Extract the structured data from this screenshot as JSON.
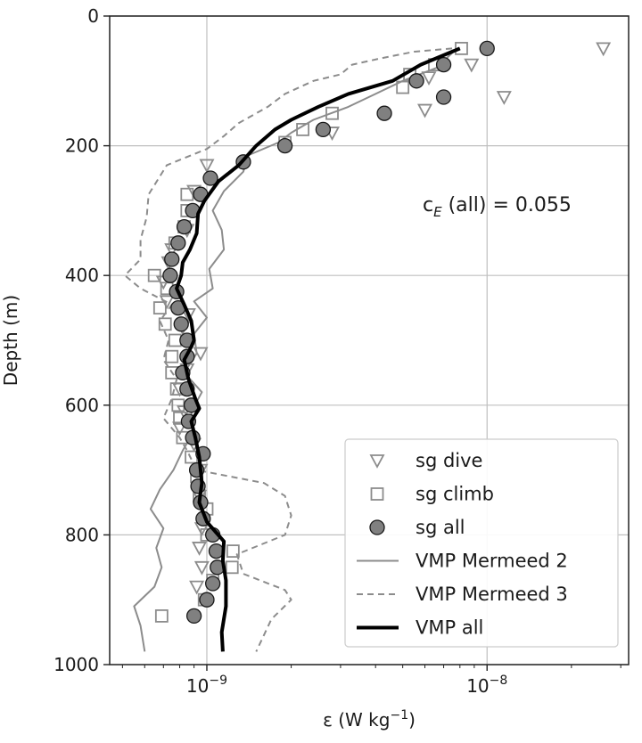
{
  "chart_data": {
    "type": "scatter",
    "xscale": "log",
    "xlim": [
      4.5e-10,
      3.2e-08
    ],
    "ylim": [
      1000,
      0
    ],
    "ylabel": "Depth (m)",
    "xlabel": {
      "pre": "ε (W kg",
      "sup": "−1",
      "post": ")"
    },
    "grid": true,
    "x_ticks": [
      {
        "value": 1e-09,
        "base": "10",
        "exp": "−9"
      },
      {
        "value": 1e-08,
        "base": "10",
        "exp": "−8"
      }
    ],
    "y_ticks": [
      0,
      200,
      400,
      600,
      800,
      1000
    ],
    "annotation": {
      "c": "c",
      "sub": "E",
      "rest": " (all) = 0.055"
    },
    "legend": {
      "position": "lower-right",
      "entries": [
        "sg dive",
        "sg climb",
        "sg all",
        "VMP Mermeed 2",
        "VMP Mermeed 3",
        "VMP all"
      ]
    },
    "series": [
      {
        "name": "sg dive",
        "marker": "triangle-down",
        "color": "#888888",
        "points": [
          [
            2.6e-08,
            50
          ],
          [
            8.8e-09,
            75
          ],
          [
            1.15e-08,
            125
          ],
          [
            6.2e-09,
            95
          ],
          [
            6e-09,
            145
          ],
          [
            2.8e-09,
            180
          ],
          [
            1e-09,
            230
          ],
          [
            9e-10,
            270
          ],
          [
            8.5e-10,
            330
          ],
          [
            7.5e-10,
            360
          ],
          [
            7.3e-10,
            380
          ],
          [
            7e-10,
            410
          ],
          [
            7.2e-10,
            440
          ],
          [
            8.6e-10,
            460
          ],
          [
            8.2e-10,
            480
          ],
          [
            9.5e-10,
            520
          ],
          [
            8.5e-10,
            545
          ],
          [
            8e-10,
            575
          ],
          [
            8.3e-10,
            610
          ],
          [
            8e-10,
            635
          ],
          [
            9e-10,
            660
          ],
          [
            9.5e-10,
            700
          ],
          [
            9.4e-10,
            740
          ],
          [
            9.6e-10,
            790
          ],
          [
            9.4e-10,
            820
          ],
          [
            9.6e-10,
            850
          ],
          [
            9.2e-10,
            880
          ]
        ]
      },
      {
        "name": "sg climb",
        "marker": "square",
        "color": "#888888",
        "points": [
          [
            8.1e-09,
            50
          ],
          [
            6.5e-09,
            75
          ],
          [
            5.3e-09,
            90
          ],
          [
            5e-09,
            110
          ],
          [
            2.8e-09,
            150
          ],
          [
            2.2e-09,
            175
          ],
          [
            1.9e-09,
            195
          ],
          [
            8.5e-10,
            275
          ],
          [
            8.5e-10,
            300
          ],
          [
            8.3e-10,
            325
          ],
          [
            7.7e-10,
            350
          ],
          [
            6.5e-10,
            400
          ],
          [
            7.2e-10,
            420
          ],
          [
            6.8e-10,
            450
          ],
          [
            7.1e-10,
            475
          ],
          [
            7.7e-10,
            500
          ],
          [
            7.5e-10,
            525
          ],
          [
            7.5e-10,
            550
          ],
          [
            7.8e-10,
            575
          ],
          [
            7.9e-10,
            600
          ],
          [
            8e-10,
            620
          ],
          [
            8.2e-10,
            650
          ],
          [
            8.8e-10,
            680
          ],
          [
            9.2e-10,
            710
          ],
          [
            9.4e-10,
            740
          ],
          [
            1e-09,
            760
          ],
          [
            1e-09,
            800
          ],
          [
            1.24e-09,
            825
          ],
          [
            1.23e-09,
            850
          ],
          [
            1.05e-09,
            870
          ],
          [
            9.8e-10,
            900
          ],
          [
            6.9e-10,
            925
          ]
        ]
      },
      {
        "name": "sg all",
        "marker": "circle",
        "color": "#888888",
        "points": [
          [
            1e-08,
            50
          ],
          [
            7e-09,
            75
          ],
          [
            5.6e-09,
            100
          ],
          [
            7e-09,
            125
          ],
          [
            4.3e-09,
            150
          ],
          [
            2.6e-09,
            175
          ],
          [
            1.9e-09,
            200
          ],
          [
            1.35e-09,
            225
          ],
          [
            1.03e-09,
            250
          ],
          [
            9.5e-10,
            275
          ],
          [
            8.9e-10,
            300
          ],
          [
            8.3e-10,
            325
          ],
          [
            7.9e-10,
            350
          ],
          [
            7.5e-10,
            375
          ],
          [
            7.4e-10,
            400
          ],
          [
            7.8e-10,
            425
          ],
          [
            7.9e-10,
            450
          ],
          [
            8.1e-10,
            475
          ],
          [
            8.5e-10,
            500
          ],
          [
            8.5e-10,
            525
          ],
          [
            8.2e-10,
            550
          ],
          [
            8.5e-10,
            575
          ],
          [
            8.8e-10,
            600
          ],
          [
            8.6e-10,
            625
          ],
          [
            8.9e-10,
            650
          ],
          [
            9.7e-10,
            675
          ],
          [
            9.2e-10,
            700
          ],
          [
            9.3e-10,
            725
          ],
          [
            9.5e-10,
            750
          ],
          [
            9.7e-10,
            775
          ],
          [
            1.05e-09,
            800
          ],
          [
            1.08e-09,
            825
          ],
          [
            1.09e-09,
            850
          ],
          [
            1.05e-09,
            875
          ],
          [
            1e-09,
            900
          ],
          [
            9e-10,
            925
          ]
        ]
      },
      {
        "name": "VMP Mermeed 2",
        "style": "solid-thin",
        "color": "#888888",
        "points": [
          [
            7.8e-09,
            50
          ],
          [
            6.6e-09,
            80
          ],
          [
            5e-09,
            100
          ],
          [
            4e-09,
            120
          ],
          [
            3.2e-09,
            140
          ],
          [
            2.4e-09,
            160
          ],
          [
            2e-09,
            180
          ],
          [
            1.8e-09,
            195
          ],
          [
            1.4e-09,
            215
          ],
          [
            1.35e-09,
            240
          ],
          [
            1.15e-09,
            270
          ],
          [
            1.05e-09,
            300
          ],
          [
            1.13e-09,
            330
          ],
          [
            1.15e-09,
            360
          ],
          [
            1.02e-09,
            390
          ],
          [
            1.05e-09,
            420
          ],
          [
            9e-10,
            440
          ],
          [
            1e-09,
            465
          ],
          [
            9e-10,
            490
          ],
          [
            9.2e-10,
            520
          ],
          [
            8.3e-10,
            550
          ],
          [
            9.6e-10,
            580
          ],
          [
            8.8e-10,
            610
          ],
          [
            9e-10,
            640
          ],
          [
            8.2e-10,
            670
          ],
          [
            7.6e-10,
            700
          ],
          [
            6.8e-10,
            730
          ],
          [
            6.3e-10,
            760
          ],
          [
            7e-10,
            790
          ],
          [
            6.6e-10,
            820
          ],
          [
            6.9e-10,
            850
          ],
          [
            6.5e-10,
            880
          ],
          [
            5.5e-10,
            910
          ],
          [
            5.8e-10,
            940
          ],
          [
            6e-10,
            980
          ]
        ]
      },
      {
        "name": "VMP Mermeed 3",
        "style": "dashed",
        "color": "#888888",
        "points": [
          [
            7.5e-09,
            50
          ],
          [
            5.5e-09,
            55
          ],
          [
            4.2e-09,
            65
          ],
          [
            3.3e-09,
            75
          ],
          [
            3e-09,
            90
          ],
          [
            2.4e-09,
            100
          ],
          [
            1.9e-09,
            120
          ],
          [
            1.65e-09,
            140
          ],
          [
            1.3e-09,
            165
          ],
          [
            1.15e-09,
            185
          ],
          [
            1e-09,
            205
          ],
          [
            7.2e-10,
            230
          ],
          [
            6.2e-10,
            275
          ],
          [
            6.1e-10,
            310
          ],
          [
            5.8e-10,
            345
          ],
          [
            5.8e-10,
            375
          ],
          [
            5.1e-10,
            400
          ],
          [
            5.8e-10,
            420
          ],
          [
            7.5e-10,
            445
          ],
          [
            6.8e-10,
            470
          ],
          [
            7.3e-10,
            500
          ],
          [
            7e-10,
            530
          ],
          [
            7.8e-10,
            560
          ],
          [
            7.5e-10,
            590
          ],
          [
            7e-10,
            620
          ],
          [
            8e-10,
            650
          ],
          [
            8.5e-10,
            670
          ],
          [
            9.2e-10,
            700
          ],
          [
            1.6e-09,
            720
          ],
          [
            1.9e-09,
            740
          ],
          [
            2e-09,
            770
          ],
          [
            1.9e-09,
            800
          ],
          [
            1.28e-09,
            830
          ],
          [
            1.35e-09,
            860
          ],
          [
            1.9e-09,
            885
          ],
          [
            2e-09,
            900
          ],
          [
            1.7e-09,
            930
          ],
          [
            1.5e-09,
            980
          ]
        ]
      },
      {
        "name": "VMP all",
        "style": "solid-thick",
        "color": "#000000",
        "points": [
          [
            8e-09,
            50
          ],
          [
            5.8e-09,
            75
          ],
          [
            4.6e-09,
            100
          ],
          [
            3.2e-09,
            120
          ],
          [
            2.5e-09,
            140
          ],
          [
            2e-09,
            160
          ],
          [
            1.75e-09,
            175
          ],
          [
            1.5e-09,
            200
          ],
          [
            1.3e-09,
            230
          ],
          [
            1.1e-09,
            255
          ],
          [
            9.8e-10,
            285
          ],
          [
            9.3e-10,
            305
          ],
          [
            9.2e-10,
            335
          ],
          [
            8.7e-10,
            360
          ],
          [
            8.2e-10,
            380
          ],
          [
            8.1e-10,
            400
          ],
          [
            7.8e-10,
            420
          ],
          [
            8.3e-10,
            445
          ],
          [
            8.8e-10,
            470
          ],
          [
            9e-10,
            500
          ],
          [
            8.8e-10,
            510
          ],
          [
            8.3e-10,
            530
          ],
          [
            8.6e-10,
            560
          ],
          [
            9.1e-10,
            590
          ],
          [
            9.4e-10,
            605
          ],
          [
            8.8e-10,
            625
          ],
          [
            9.1e-10,
            650
          ],
          [
            9.4e-10,
            680
          ],
          [
            9.6e-10,
            720
          ],
          [
            9.4e-10,
            750
          ],
          [
            1e-09,
            780
          ],
          [
            1.15e-09,
            810
          ],
          [
            1.14e-09,
            840
          ],
          [
            1.17e-09,
            870
          ],
          [
            1.17e-09,
            910
          ],
          [
            1.13e-09,
            950
          ],
          [
            1.14e-09,
            980
          ]
        ]
      }
    ]
  }
}
